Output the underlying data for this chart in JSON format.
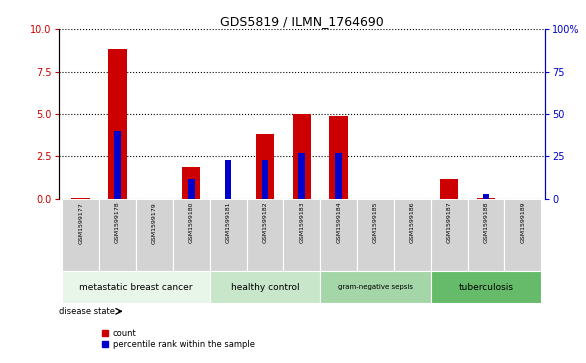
{
  "title": "GDS5819 / ILMN_1764690",
  "samples": [
    "GSM1599177",
    "GSM1599178",
    "GSM1599179",
    "GSM1599180",
    "GSM1599181",
    "GSM1599182",
    "GSM1599183",
    "GSM1599184",
    "GSM1599185",
    "GSM1599186",
    "GSM1599187",
    "GSM1599188",
    "GSM1599189"
  ],
  "count_values": [
    0.05,
    8.8,
    0.0,
    1.9,
    0.0,
    3.8,
    5.0,
    4.9,
    0.0,
    0.0,
    1.2,
    0.05,
    0.0
  ],
  "percentile_values": [
    0.0,
    40.0,
    0.0,
    12.0,
    23.0,
    23.0,
    27.0,
    27.0,
    0.0,
    0.0,
    0.0,
    3.0,
    0.0
  ],
  "ylim_left": [
    0,
    10
  ],
  "ylim_right": [
    0,
    100
  ],
  "yticks_left": [
    0,
    2.5,
    5,
    7.5,
    10
  ],
  "yticks_right": [
    0,
    25,
    50,
    75,
    100
  ],
  "groups": [
    {
      "label": "metastatic breast cancer",
      "start": 0,
      "end": 4,
      "color": "#e8f5e9"
    },
    {
      "label": "healthy control",
      "start": 4,
      "end": 7,
      "color": "#c8e6c9"
    },
    {
      "label": "gram-negative sepsis",
      "start": 7,
      "end": 10,
      "color": "#a5d6a7"
    },
    {
      "label": "tuberculosis",
      "start": 10,
      "end": 13,
      "color": "#66bb6a"
    }
  ],
  "bar_color_count": "#cc0000",
  "bar_color_pct": "#0000cc",
  "bg_color_sample_row": "#d3d3d3",
  "legend_count_label": "count",
  "legend_pct_label": "percentile rank within the sample"
}
